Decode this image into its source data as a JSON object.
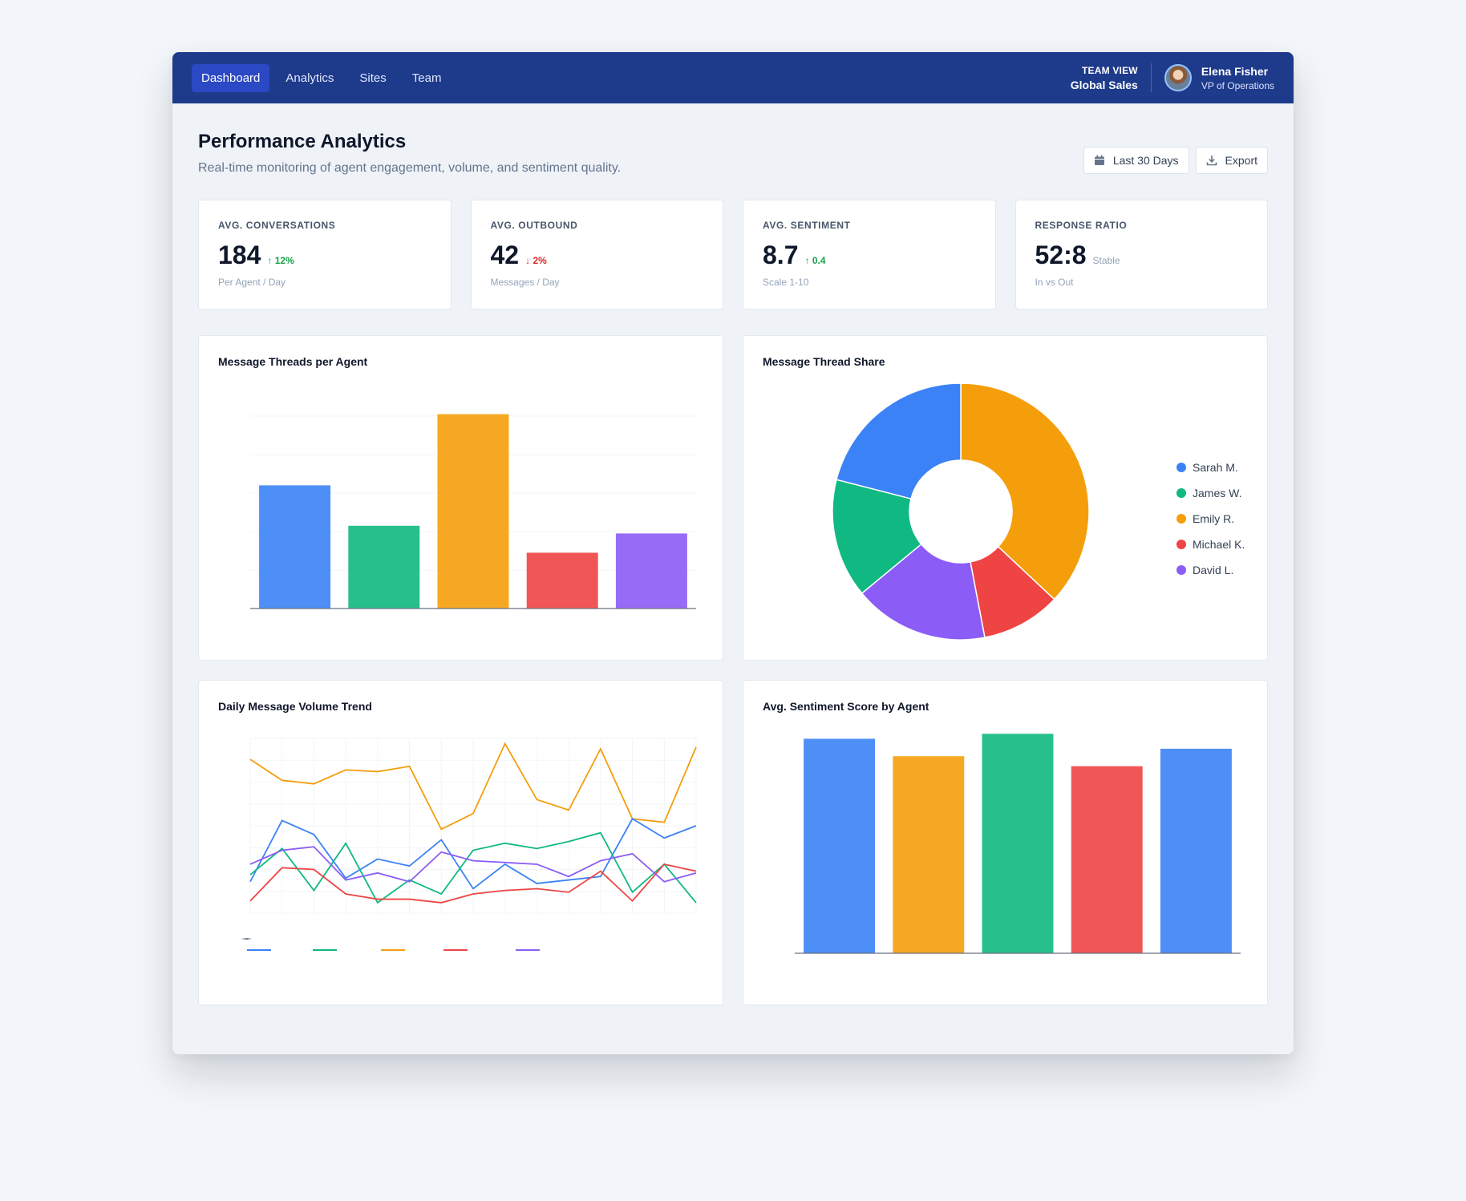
{
  "nav": {
    "links": [
      {
        "label": "Dashboard",
        "active": true
      },
      {
        "label": "Analytics",
        "active": false
      },
      {
        "label": "Sites",
        "active": false
      },
      {
        "label": "Team",
        "active": false
      }
    ],
    "team_view_label": "TEAM VIEW",
    "team_view_value": "Global Sales",
    "user_name": "Elena Fisher",
    "user_role": "VP of Operations"
  },
  "header": {
    "title": "Performance Analytics",
    "subtitle": "Real-time monitoring of agent engagement, volume, and sentiment quality.",
    "date_button": "Last 30 Days",
    "export_button": "Export"
  },
  "kpis": [
    {
      "label": "AVG. CONVERSATIONS",
      "value": "184",
      "delta": "12%",
      "direction": "up",
      "sub": "Per Agent / Day"
    },
    {
      "label": "AVG. OUTBOUND",
      "value": "42",
      "delta": "2%",
      "direction": "down",
      "sub": "Messages / Day"
    },
    {
      "label": "AVG. SENTIMENT",
      "value": "8.7",
      "delta": "0.4",
      "direction": "up",
      "sub": "Scale 1-10"
    },
    {
      "label": "RESPONSE RATIO",
      "value": "52:8",
      "delta": "Stable",
      "direction": "neutral",
      "sub": "In vs Out"
    }
  ],
  "colors": {
    "blue": "#3b82f6",
    "green": "#10b981",
    "orange": "#f59e0b",
    "red": "#ef4444",
    "purple": "#8b5cf6"
  },
  "chart_data": [
    {
      "type": "bar",
      "title": "Message Threads per Agent",
      "values": [
        64,
        43,
        101,
        29,
        39
      ],
      "colors": [
        "#3b82f6",
        "#10b981",
        "#f59e0b",
        "#ef4444",
        "#8b5cf6"
      ],
      "ylim": [
        0,
        100
      ],
      "grid": true
    },
    {
      "type": "pie",
      "title": "Message Thread Share",
      "labels": [
        "Sarah M.",
        "James W.",
        "Emily R.",
        "Michael K.",
        "David L."
      ],
      "values": [
        37,
        10,
        17,
        15,
        21
      ],
      "slice_order_colors": [
        "#f59e0b",
        "#ef4444",
        "#8b5cf6",
        "#10b981",
        "#3b82f6"
      ],
      "legend_colors": [
        "#3b82f6",
        "#10b981",
        "#f59e0b",
        "#ef4444",
        "#8b5cf6"
      ],
      "legend": "right"
    },
    {
      "type": "line",
      "title": "Daily Message Volume Trend",
      "x": [
        1,
        2,
        3,
        4,
        5,
        6,
        7,
        8,
        9,
        10,
        11,
        12,
        13,
        14,
        15
      ],
      "ylim": [
        0,
        100
      ],
      "grid": true,
      "series": [
        {
          "color": "#f59e0b",
          "values": [
            88,
            76,
            74,
            82,
            81,
            84,
            48,
            57,
            97,
            65,
            59,
            94,
            54,
            52,
            95
          ]
        },
        {
          "color": "#3b82f6",
          "values": [
            18,
            53,
            45,
            20,
            31,
            27,
            42,
            14,
            28,
            17,
            19,
            21,
            54,
            43,
            50
          ]
        },
        {
          "color": "#10b981",
          "values": [
            22,
            37,
            13,
            40,
            6,
            19,
            11,
            36,
            40,
            37,
            41,
            46,
            12,
            28,
            6
          ]
        },
        {
          "color": "#ef4444",
          "values": [
            7,
            26,
            25,
            11,
            8,
            8,
            6,
            11,
            13,
            14,
            12,
            24,
            7,
            28,
            24
          ]
        },
        {
          "color": "#8b5cf6",
          "values": [
            28,
            36,
            38,
            19,
            23,
            18,
            35,
            30,
            29,
            28,
            21,
            30,
            34,
            18,
            23
          ]
        }
      ]
    },
    {
      "type": "bar",
      "title": "Avg. Sentiment Score by Agent",
      "values": [
        8.6,
        7.9,
        8.8,
        7.5,
        8.2
      ],
      "colors": [
        "#3b82f6",
        "#f59e0b",
        "#10b981",
        "#ef4444",
        "#3b82f6"
      ],
      "ylim": [
        0,
        9
      ],
      "grid": false
    }
  ]
}
